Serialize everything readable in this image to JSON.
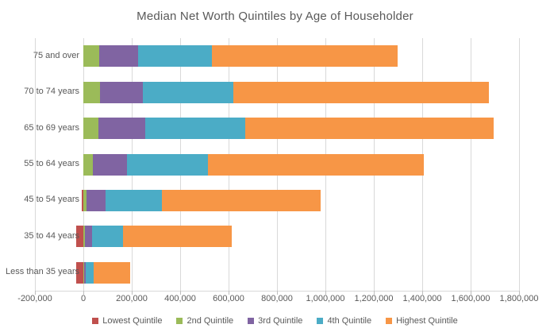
{
  "title": "Median Net Worth Quintiles by Age of Householder",
  "chart_data": {
    "type": "bar",
    "orientation": "horizontal",
    "stacked": true,
    "title": "Median Net Worth Quintiles by Age of Householder",
    "xlabel": "",
    "ylabel": "",
    "xlim": [
      -200000,
      1800000
    ],
    "grid": "vertical",
    "legend_position": "bottom",
    "categories": [
      "75 and over",
      "70 to 74 years",
      "65 to 69 years",
      "55 to 64 years",
      "45 to 54 years",
      "35 to 44 years",
      "Less than 35 years"
    ],
    "x_tick_labels": [
      "-200,000",
      "0",
      "200,000",
      "400,000",
      "600,000",
      "800,000",
      "1,000,000",
      "1,200,000",
      "1,400,000",
      "1,600,000",
      "1,800,000"
    ],
    "x_tick_values": [
      -200000,
      0,
      200000,
      400000,
      600000,
      800000,
      1000000,
      1200000,
      1400000,
      1600000,
      1800000
    ],
    "series": [
      {
        "name": "Lowest Quintile",
        "color": "#c0504d",
        "values": [
          0,
          0,
          0,
          0,
          -8000,
          -28000,
          -30000
        ]
      },
      {
        "name": "2nd  Quintile",
        "color": "#9bbb59",
        "values": [
          67000,
          69000,
          62000,
          40000,
          13000,
          5000,
          2000
        ]
      },
      {
        "name": "3rd Quintile",
        "color": "#8064a2",
        "values": [
          158000,
          177000,
          194000,
          140000,
          78000,
          31000,
          8000
        ]
      },
      {
        "name": "4th Quintile",
        "color": "#4bacc6",
        "values": [
          305000,
          374000,
          412000,
          336000,
          232000,
          128000,
          34000
        ]
      },
      {
        "name": "Highest Quintile",
        "color": "#f79646",
        "values": [
          770000,
          1056000,
          1028000,
          890000,
          658000,
          450000,
          150000
        ]
      }
    ]
  },
  "style": {
    "gridline_color": "#d9d9d9",
    "text_color": "#595959",
    "background": "#ffffff"
  }
}
